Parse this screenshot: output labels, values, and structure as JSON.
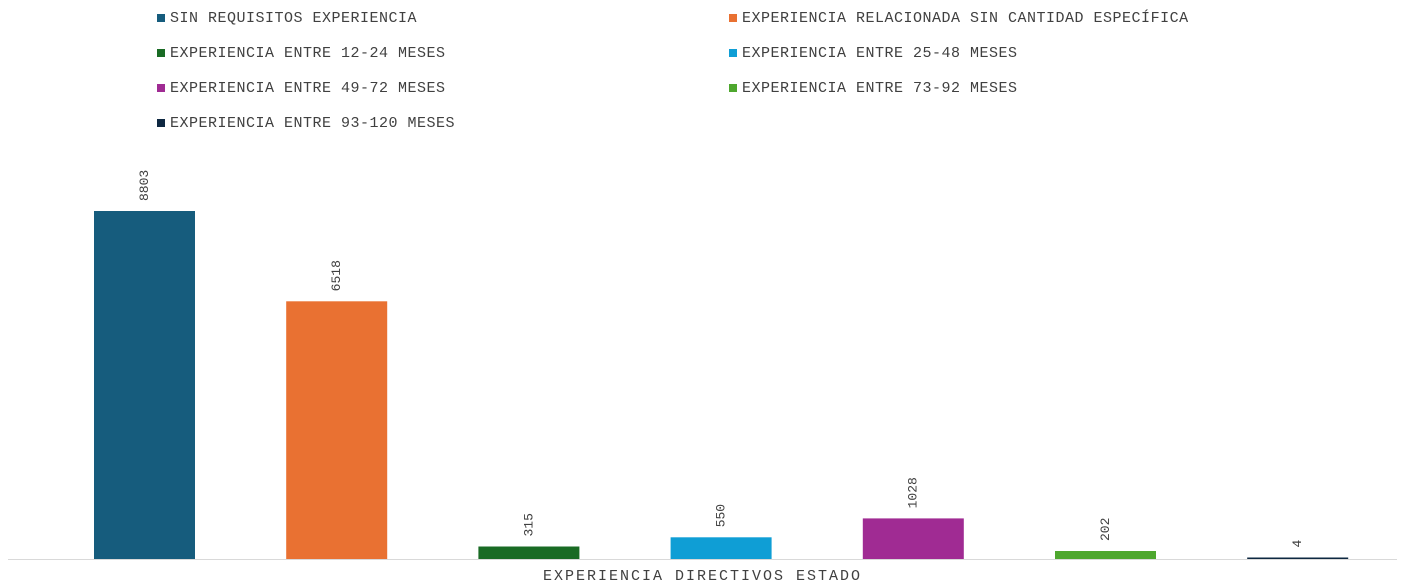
{
  "chart_data": {
    "type": "bar",
    "xlabel": "EXPERIENCIA DIRECTIVOS ESTADO",
    "ylabel": "",
    "ylim": [
      0,
      10000
    ],
    "grid": false,
    "legend_position": "top",
    "categories": [
      "EXPERIENCIA DIRECTIVOS ESTADO"
    ],
    "series": [
      {
        "name": "SIN REQUISITOS EXPERIENCIA",
        "values": [
          8803
        ],
        "color": "#165c7d"
      },
      {
        "name": "EXPERIENCIA RELACIONADA SIN CANTIDAD ESPECÍFICA",
        "values": [
          6518
        ],
        "color": "#e97132"
      },
      {
        "name": "EXPERIENCIA ENTRE 12-24 MESES",
        "values": [
          315
        ],
        "color": "#196b24"
      },
      {
        "name": "EXPERIENCIA ENTRE 25-48 MESES",
        "values": [
          550
        ],
        "color": "#0f9ed5"
      },
      {
        "name": "EXPERIENCIA ENTRE 49-72 MESES",
        "values": [
          1028
        ],
        "color": "#a02b93"
      },
      {
        "name": "EXPERIENCIA ENTRE 73-92 MESES",
        "values": [
          202
        ],
        "color": "#4ea72e"
      },
      {
        "name": "EXPERIENCIA ENTRE 93-120 MESES",
        "values": [
          4
        ],
        "color": "#0e2841"
      }
    ]
  }
}
